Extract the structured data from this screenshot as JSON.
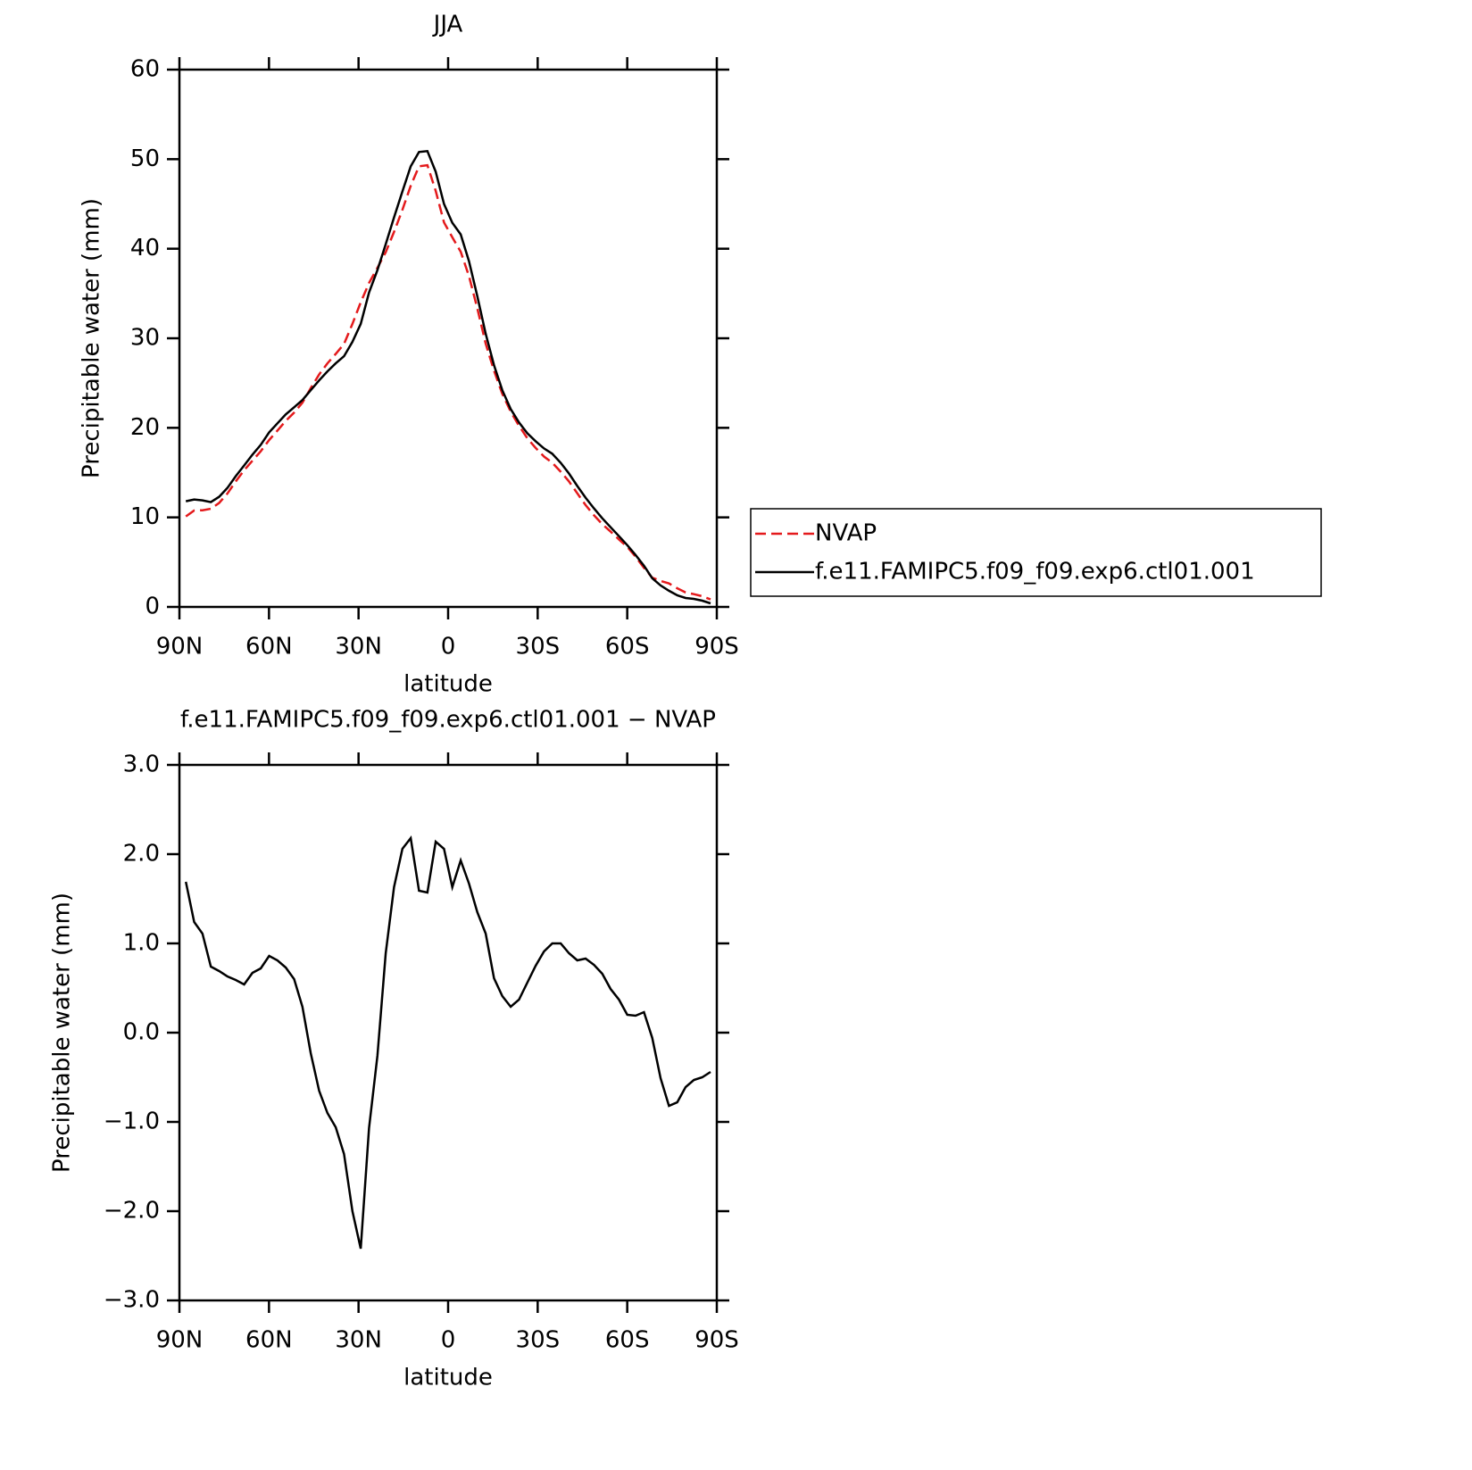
{
  "chart_data": [
    {
      "type": "line",
      "title": "JJA",
      "xlabel": "latitude",
      "ylabel": "Precipitable water (mm)",
      "x": [
        87.86,
        85.07,
        82.28,
        79.49,
        76.7,
        73.91,
        71.12,
        68.33,
        65.54,
        62.75,
        59.96,
        57.17,
        54.38,
        51.59,
        48.8,
        46.01,
        43.22,
        40.43,
        37.64,
        34.85,
        32.06,
        29.27,
        26.48,
        23.69,
        20.9,
        18.11,
        15.32,
        12.53,
        9.74,
        6.95,
        4.16,
        1.37,
        -1.42,
        -4.21,
        -7.0,
        -9.79,
        -12.58,
        -15.37,
        -18.16,
        -20.95,
        -23.74,
        -26.53,
        -29.32,
        -32.11,
        -34.9,
        -37.69,
        -40.48,
        -43.27,
        -46.06,
        -48.85,
        -51.64,
        -54.43,
        -57.22,
        -60.01,
        -62.8,
        -65.59,
        -68.38,
        -71.17,
        -73.96,
        -76.75,
        -79.54,
        -82.33,
        -85.12,
        -87.91
      ],
      "series": [
        {
          "name": "NVAP",
          "color": "#e41a1c",
          "style": "dashed",
          "values": [
            10.11,
            10.76,
            10.79,
            10.96,
            11.61,
            12.67,
            14.01,
            15.26,
            16.33,
            17.38,
            18.64,
            19.69,
            20.77,
            21.7,
            22.81,
            24.43,
            25.95,
            27.2,
            28.26,
            29.36,
            31.6,
            34.02,
            36.17,
            37.86,
            39.61,
            41.87,
            44.34,
            47.02,
            49.21,
            49.33,
            46.46,
            42.94,
            41.27,
            39.67,
            36.93,
            33.35,
            29.39,
            26.39,
            23.79,
            21.81,
            20.23,
            18.84,
            17.75,
            16.79,
            16.1,
            15.1,
            14.01,
            12.69,
            11.37,
            10.24,
            9.24,
            8.41,
            7.53,
            6.7,
            5.61,
            4.37,
            3.26,
            2.91,
            2.62,
            2.08,
            1.61,
            1.43,
            1.2,
            0.84
          ]
        },
        {
          "name": "f.e11.FAMIPC5.f09_f09.exp6.ctl01.001",
          "color": "#000000",
          "style": "solid",
          "values": [
            11.8,
            12.0,
            11.9,
            11.7,
            12.3,
            13.3,
            14.6,
            15.8,
            17.0,
            18.1,
            19.5,
            20.5,
            21.5,
            22.3,
            23.1,
            24.2,
            25.3,
            26.3,
            27.2,
            28.0,
            29.6,
            31.6,
            35.1,
            37.6,
            40.5,
            43.5,
            46.4,
            49.2,
            50.8,
            50.9,
            48.6,
            45.0,
            42.9,
            41.6,
            38.6,
            34.7,
            30.5,
            27.0,
            24.2,
            22.1,
            20.6,
            19.4,
            18.5,
            17.7,
            17.1,
            16.1,
            14.9,
            13.5,
            12.2,
            11.0,
            9.9,
            8.9,
            7.9,
            6.9,
            5.8,
            4.6,
            3.2,
            2.4,
            1.8,
            1.3,
            1.0,
            0.9,
            0.7,
            0.4
          ]
        }
      ],
      "xlim": [
        90,
        -90
      ],
      "xticks": [
        {
          "value": 90,
          "label": "90N"
        },
        {
          "value": 60,
          "label": "60N"
        },
        {
          "value": 30,
          "label": "30N"
        },
        0,
        {
          "value": -30,
          "label": "30S"
        },
        {
          "value": -60,
          "label": "60S"
        },
        {
          "value": -90,
          "label": "90S"
        }
      ],
      "ylim": [
        0,
        60
      ],
      "yticks": [
        0,
        10,
        20,
        30,
        40,
        50,
        60
      ],
      "grid": false,
      "legend": "right"
    },
    {
      "type": "line",
      "title": "f.e11.FAMIPC5.f09_f09.exp6.ctl01.001 − NVAP",
      "xlabel": "latitude",
      "ylabel": "Precipitable water (mm)",
      "x": [
        87.86,
        85.07,
        82.28,
        79.49,
        76.7,
        73.91,
        71.12,
        68.33,
        65.54,
        62.75,
        59.96,
        57.17,
        54.38,
        51.59,
        48.8,
        46.01,
        43.22,
        40.43,
        37.64,
        34.85,
        32.06,
        29.27,
        26.48,
        23.69,
        20.9,
        18.11,
        15.32,
        12.53,
        9.74,
        6.95,
        4.16,
        1.37,
        -1.42,
        -4.21,
        -7.0,
        -9.79,
        -12.58,
        -15.37,
        -18.16,
        -20.95,
        -23.74,
        -26.53,
        -29.32,
        -32.11,
        -34.9,
        -37.69,
        -40.48,
        -43.27,
        -46.06,
        -48.85,
        -51.64,
        -54.43,
        -57.22,
        -60.01,
        -62.8,
        -65.59,
        -68.38,
        -71.17,
        -73.96,
        -76.75,
        -79.54,
        -82.33,
        -85.12,
        -87.91
      ],
      "values": [
        1.69,
        1.24,
        1.11,
        0.74,
        0.69,
        0.63,
        0.59,
        0.54,
        0.67,
        0.72,
        0.86,
        0.81,
        0.73,
        0.6,
        0.29,
        -0.23,
        -0.65,
        -0.9,
        -1.06,
        -1.36,
        -2.0,
        -2.42,
        -1.07,
        -0.26,
        0.89,
        1.63,
        2.06,
        2.18,
        1.59,
        1.57,
        2.14,
        2.06,
        1.63,
        1.93,
        1.67,
        1.35,
        1.11,
        0.61,
        0.41,
        0.29,
        0.37,
        0.56,
        0.75,
        0.91,
        1.0,
        1.0,
        0.89,
        0.81,
        0.83,
        0.76,
        0.66,
        0.49,
        0.37,
        0.2,
        0.19,
        0.23,
        -0.06,
        -0.51,
        -0.82,
        -0.78,
        -0.61,
        -0.53,
        -0.5,
        -0.44
      ],
      "color": "#000000",
      "xlim": [
        90,
        -90
      ],
      "xticks": [
        {
          "value": 90,
          "label": "90N"
        },
        {
          "value": 60,
          "label": "60N"
        },
        {
          "value": 30,
          "label": "30N"
        },
        0,
        {
          "value": -30,
          "label": "30S"
        },
        {
          "value": -60,
          "label": "60S"
        },
        {
          "value": -90,
          "label": "90S"
        }
      ],
      "ylim": [
        -3,
        3
      ],
      "yticks": [
        {
          "value": -3,
          "label": "−3.0"
        },
        {
          "value": -2,
          "label": "−2.0"
        },
        {
          "value": -1,
          "label": "−1.0"
        },
        {
          "value": 0,
          "label": "0.0"
        },
        {
          "value": 1,
          "label": "1.0"
        },
        {
          "value": 2,
          "label": "2.0"
        },
        {
          "value": 3,
          "label": "3.0"
        }
      ],
      "grid": false
    }
  ]
}
